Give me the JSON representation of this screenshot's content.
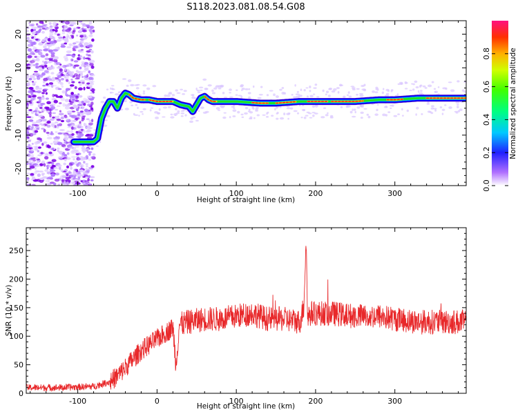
{
  "title": "S118.2023.081.08.54.G08",
  "colors": {
    "snr_line": "#e8282a",
    "track_core": "#ff2020",
    "track_mid": "#22dd22",
    "track_edge": "#0000ff",
    "noise": "#8a2be2"
  },
  "chart_data": [
    {
      "type": "heatmap",
      "xlabel": "Height of straight line (km)",
      "ylabel": "Frequency (Hz)",
      "xlim": [
        -165,
        390
      ],
      "ylim": [
        -25,
        24
      ],
      "xticks": [
        -100,
        0,
        100,
        200,
        300
      ],
      "yticks": [
        -20,
        -10,
        0,
        10,
        20
      ],
      "colorbar": {
        "label": "Normalized spectral amplitude",
        "range": [
          0.0,
          1.0
        ],
        "ticks": [
          0.0,
          0.2,
          0.4,
          0.6,
          0.8
        ]
      },
      "ridge": {
        "x": [
          -105,
          -90,
          -80,
          -75,
          -70,
          -65,
          -60,
          -55,
          -50,
          -45,
          -40,
          -35,
          -30,
          -20,
          -10,
          0,
          20,
          30,
          40,
          45,
          50,
          55,
          60,
          65,
          70,
          80,
          100,
          130,
          150,
          180,
          200,
          220,
          250,
          280,
          300,
          330,
          360,
          390
        ],
        "y": [
          -12,
          -12,
          -12,
          -11,
          -5,
          -2,
          0,
          0,
          -2,
          1,
          2.5,
          2,
          1,
          0.5,
          0.5,
          0,
          0,
          -1,
          -1.5,
          -3,
          -1,
          1,
          1.5,
          0.5,
          0,
          0,
          0,
          -0.5,
          -0.5,
          0,
          0,
          0,
          0,
          0.5,
          0.5,
          1,
          1,
          1
        ]
      }
    },
    {
      "type": "line",
      "xlabel": "Height of straight line (km)",
      "ylabel": "SNR (10 * v/v)",
      "xlim": [
        -165,
        390
      ],
      "ylim": [
        0,
        290
      ],
      "xticks": [
        -100,
        0,
        100,
        200,
        300
      ],
      "yticks": [
        0,
        50,
        100,
        150,
        200,
        250
      ],
      "series": [
        {
          "x": [
            -165,
            -120,
            -80,
            -60,
            -50,
            -40,
            -30,
            -20,
            -10,
            0,
            10,
            20,
            24,
            28,
            40,
            60,
            80,
            100,
            120,
            140,
            160,
            180,
            185,
            188,
            190,
            195,
            220,
            250,
            280,
            300,
            330,
            360,
            390
          ],
          "values": [
            10,
            10,
            12,
            20,
            30,
            45,
            60,
            75,
            85,
            95,
            105,
            115,
            50,
            120,
            125,
            130,
            130,
            135,
            140,
            130,
            130,
            125,
            150,
            270,
            135,
            140,
            140,
            135,
            135,
            130,
            125,
            125,
            125
          ]
        }
      ]
    }
  ]
}
